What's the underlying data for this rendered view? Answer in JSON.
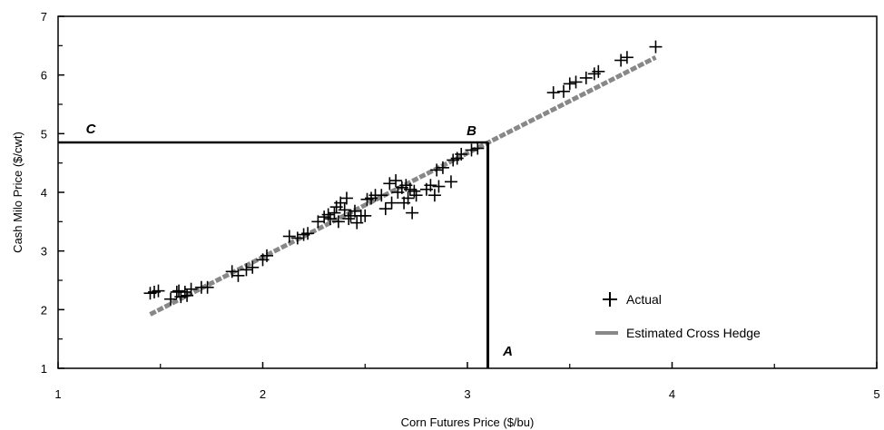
{
  "chart_data": {
    "type": "scatter",
    "xlabel": "Corn Futures Price ($/bu)",
    "ylabel": "Cash Milo Price ($/cwt)",
    "xlim": [
      1,
      5
    ],
    "ylim": [
      1,
      7
    ],
    "x_ticks": [
      "1",
      "2",
      "3",
      "4",
      "5"
    ],
    "y_ticks": [
      "1",
      "2",
      "3",
      "4",
      "5",
      "6",
      "7"
    ],
    "grid": false,
    "legend_position": "bottom-right",
    "series": [
      {
        "name": "Actual",
        "marker": "plus",
        "color": "#000000",
        "points": [
          [
            1.45,
            2.28
          ],
          [
            1.47,
            2.3
          ],
          [
            1.49,
            2.32
          ],
          [
            1.55,
            2.18
          ],
          [
            1.58,
            2.3
          ],
          [
            1.59,
            2.32
          ],
          [
            1.6,
            2.22
          ],
          [
            1.62,
            2.3
          ],
          [
            1.63,
            2.24
          ],
          [
            1.65,
            2.35
          ],
          [
            1.7,
            2.38
          ],
          [
            1.73,
            2.38
          ],
          [
            1.85,
            2.65
          ],
          [
            1.88,
            2.58
          ],
          [
            1.92,
            2.68
          ],
          [
            1.95,
            2.72
          ],
          [
            2.0,
            2.85
          ],
          [
            2.02,
            2.92
          ],
          [
            2.13,
            3.25
          ],
          [
            2.17,
            3.22
          ],
          [
            2.2,
            3.28
          ],
          [
            2.22,
            3.3
          ],
          [
            2.27,
            3.5
          ],
          [
            2.3,
            3.58
          ],
          [
            2.32,
            3.62
          ],
          [
            2.33,
            3.55
          ],
          [
            2.35,
            3.65
          ],
          [
            2.36,
            3.75
          ],
          [
            2.37,
            3.5
          ],
          [
            2.38,
            3.82
          ],
          [
            2.4,
            3.7
          ],
          [
            2.41,
            3.9
          ],
          [
            2.42,
            3.55
          ],
          [
            2.43,
            3.6
          ],
          [
            2.45,
            3.68
          ],
          [
            2.46,
            3.48
          ],
          [
            2.48,
            3.6
          ],
          [
            2.5,
            3.6
          ],
          [
            2.51,
            3.88
          ],
          [
            2.53,
            3.9
          ],
          [
            2.55,
            3.95
          ],
          [
            2.58,
            3.95
          ],
          [
            2.6,
            3.72
          ],
          [
            2.62,
            4.15
          ],
          [
            2.63,
            3.82
          ],
          [
            2.65,
            4.2
          ],
          [
            2.66,
            4.0
          ],
          [
            2.68,
            4.08
          ],
          [
            2.69,
            3.82
          ],
          [
            2.7,
            4.12
          ],
          [
            2.71,
            3.9
          ],
          [
            2.72,
            4.05
          ],
          [
            2.73,
            3.65
          ],
          [
            2.74,
            4.02
          ],
          [
            2.75,
            3.95
          ],
          [
            2.8,
            4.05
          ],
          [
            2.82,
            4.12
          ],
          [
            2.84,
            3.95
          ],
          [
            2.86,
            4.1
          ],
          [
            2.85,
            4.38
          ],
          [
            2.88,
            4.42
          ],
          [
            2.92,
            4.18
          ],
          [
            2.93,
            4.55
          ],
          [
            2.95,
            4.58
          ],
          [
            2.97,
            4.65
          ],
          [
            3.02,
            4.72
          ],
          [
            3.05,
            4.75
          ],
          [
            3.42,
            5.7
          ],
          [
            3.47,
            5.72
          ],
          [
            3.5,
            5.85
          ],
          [
            3.53,
            5.88
          ],
          [
            3.58,
            5.95
          ],
          [
            3.62,
            6.02
          ],
          [
            3.64,
            6.06
          ],
          [
            3.75,
            6.25
          ],
          [
            3.78,
            6.3
          ],
          [
            3.92,
            6.48
          ]
        ]
      },
      {
        "name": "Estimated Cross Hedge",
        "marker": "dash",
        "color": "#888888",
        "line": [
          [
            1.45,
            1.92
          ],
          [
            3.92,
            6.3
          ]
        ]
      }
    ],
    "annotations": [
      {
        "label": "A",
        "x": 3.1,
        "y": 1
      },
      {
        "label": "B",
        "x": 3.1,
        "y": 4.85
      },
      {
        "label": "C",
        "x": 1,
        "y": 4.85
      }
    ],
    "guide_lines": {
      "x": 3.1,
      "y": 4.85
    }
  }
}
